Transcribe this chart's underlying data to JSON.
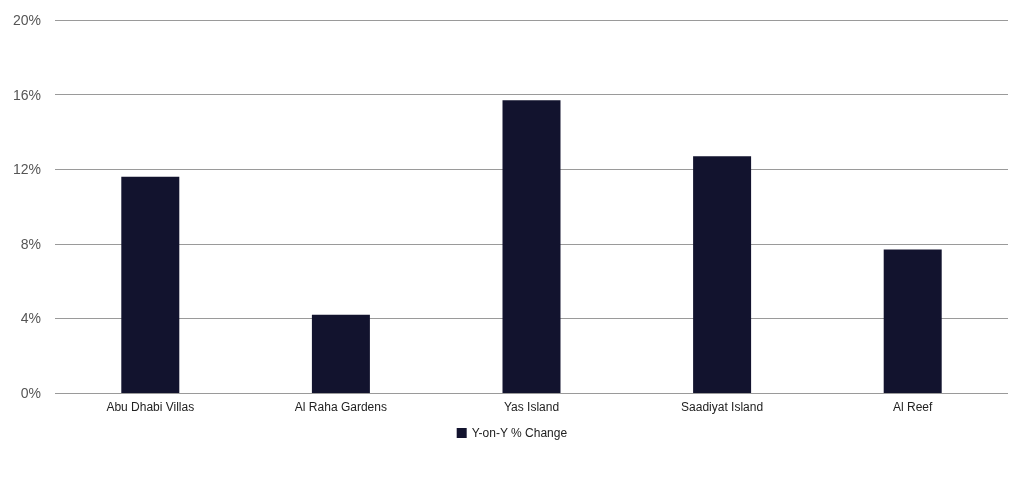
{
  "chart_data": {
    "type": "bar",
    "categories": [
      "Abu Dhabi Villas",
      "Al Raha Gardens",
      "Yas Island",
      "Saadiyat Island",
      "Al Reef"
    ],
    "series": [
      {
        "name": "Y-on-Y % Change",
        "color": "#12132e",
        "values": [
          11.6,
          4.2,
          15.7,
          12.7,
          7.7
        ]
      }
    ],
    "ylim": [
      0,
      20
    ],
    "yticks": [
      {
        "value": 0,
        "label": "0%"
      },
      {
        "value": 4,
        "label": "4%"
      },
      {
        "value": 8,
        "label": "8%"
      },
      {
        "value": 12,
        "label": "12%"
      },
      {
        "value": 16,
        "label": "16%"
      },
      {
        "value": 20,
        "label": "20%"
      }
    ],
    "grid": "y",
    "legend": "bottom"
  }
}
